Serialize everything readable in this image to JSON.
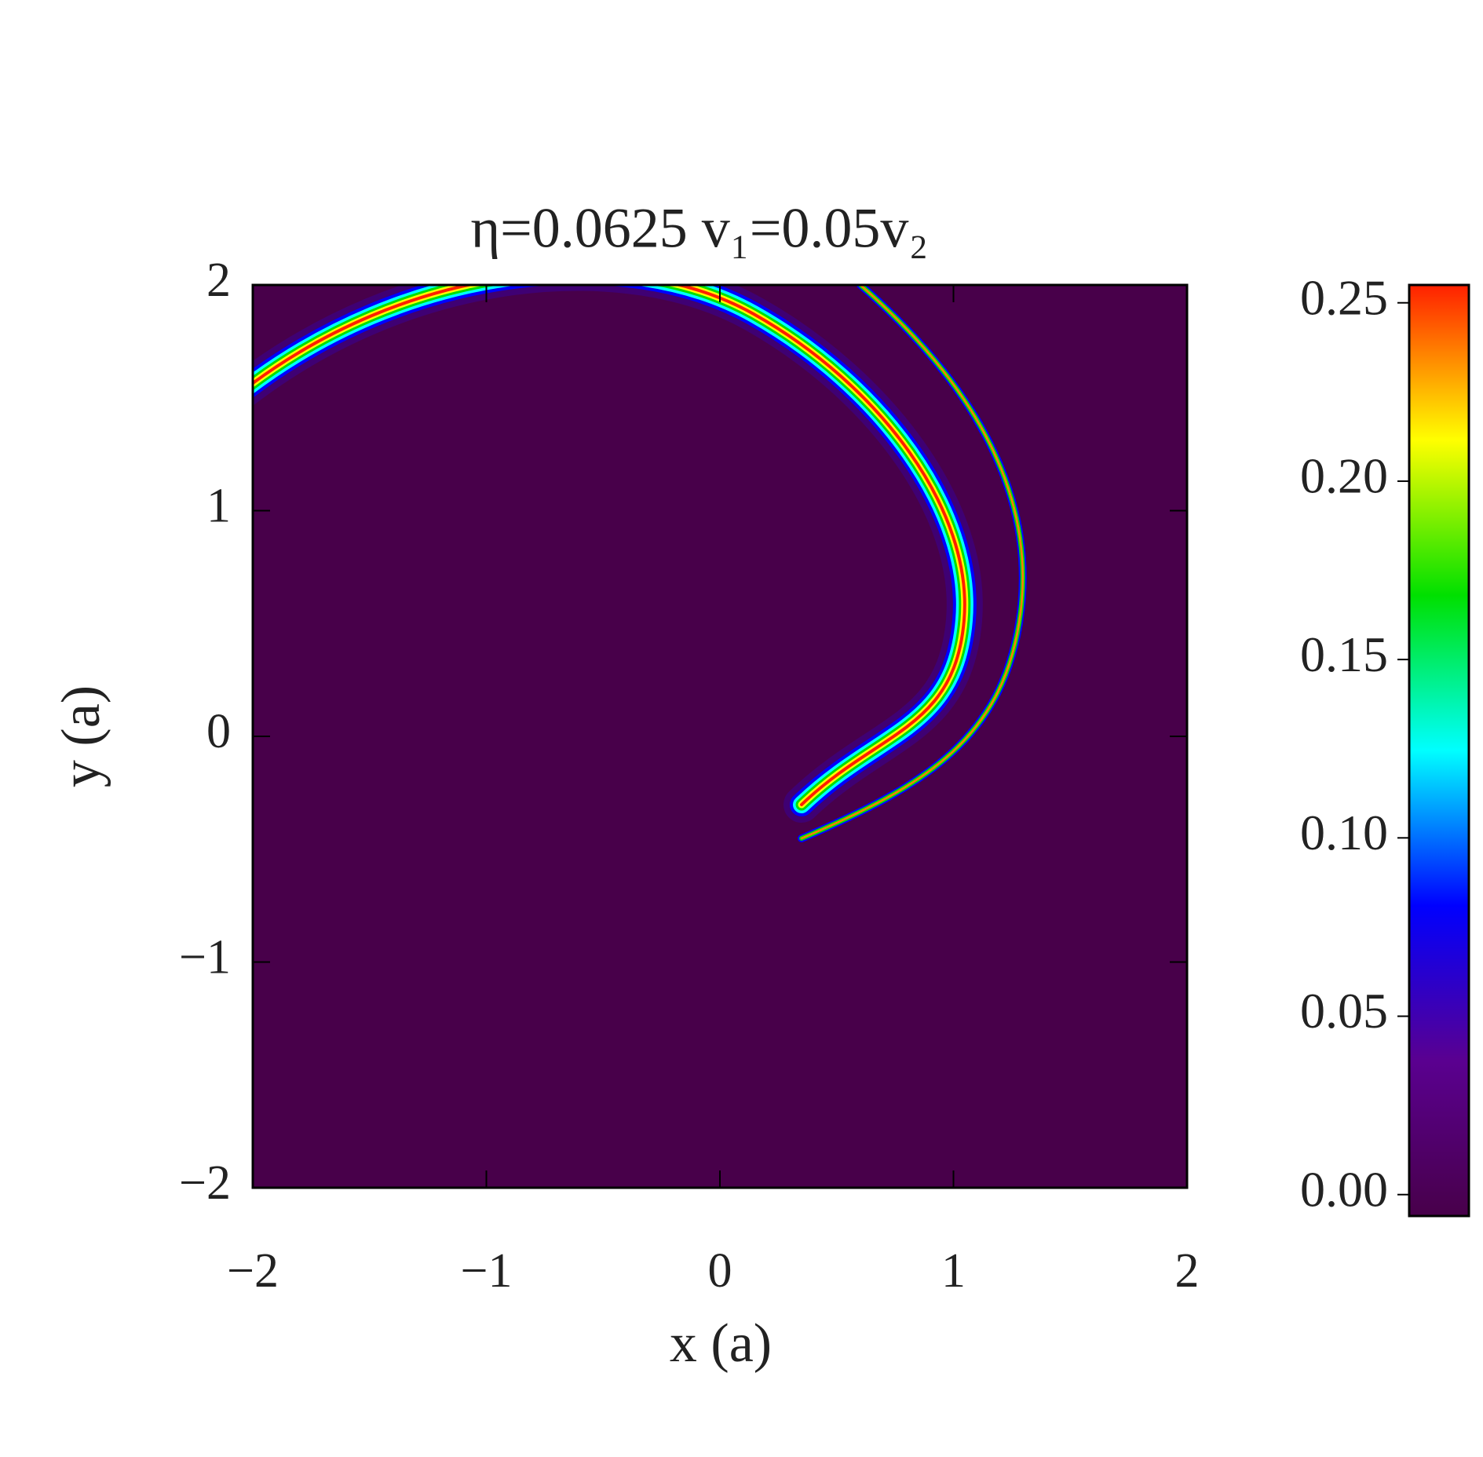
{
  "chart_data": {
    "type": "heatmap",
    "title": "η=0.0625  v₁=0.05v₂",
    "x_label": "x (a)",
    "y_label": "y (a)",
    "xlim": [
      -2,
      2
    ],
    "ylim": [
      -2,
      2
    ],
    "xticks": [
      {
        "value": -2,
        "label": "−2"
      },
      {
        "value": -1,
        "label": "−1"
      },
      0,
      1,
      2
    ],
    "yticks": [
      {
        "value": -2,
        "label": "−2"
      },
      {
        "value": -1,
        "label": "−1"
      },
      0,
      1,
      2
    ],
    "background_color": "#48004a",
    "colorbar": {
      "lim": [
        -0.006,
        0.255
      ],
      "ticks": [
        {
          "value": 0,
          "label": "0.00"
        },
        {
          "value": 0.05,
          "label": "0.05"
        },
        {
          "value": 0.1,
          "label": "0.10"
        },
        {
          "value": 0.15,
          "label": "0.15"
        },
        {
          "value": 0.2,
          "label": "0.20"
        },
        {
          "value": 0.25,
          "label": "0.25"
        }
      ],
      "colors": [
        "#48004a",
        "#5a0090",
        "#0000ff",
        "#00ffff",
        "#00e000",
        "#ffff00",
        "#ff2000"
      ]
    }
  }
}
